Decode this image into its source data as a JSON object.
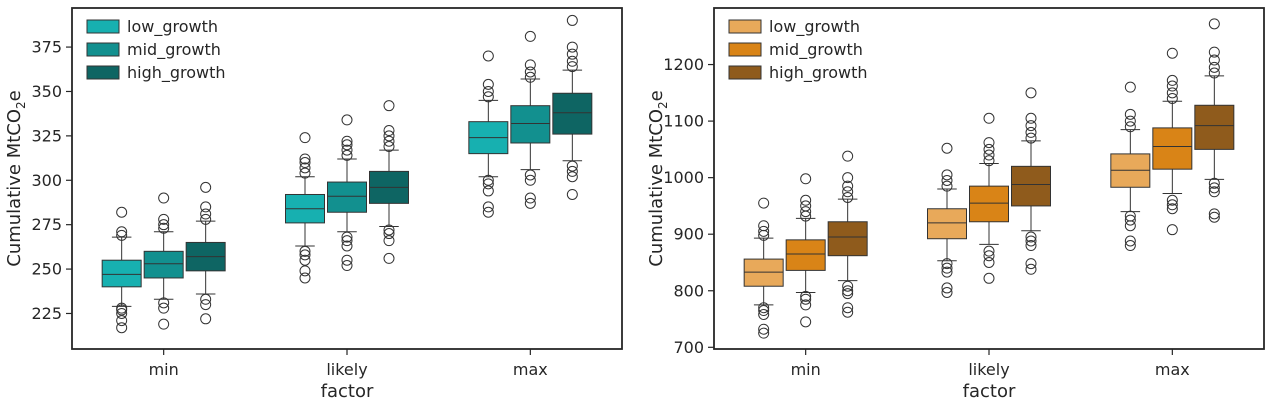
{
  "chart_data": [
    {
      "type": "box",
      "categories": [
        "min",
        "likely",
        "max"
      ],
      "xlabel": "factor",
      "ylabel": "Cumulative MtCO",
      "ylabel_sub": "2",
      "ylabel_tail": "e",
      "ylim": [
        205,
        397
      ],
      "yticks": [
        225,
        250,
        275,
        300,
        325,
        350,
        375
      ],
      "legend": {
        "placement": "top-left",
        "entries": [
          "low_growth",
          "mid_growth",
          "high_growth"
        ]
      },
      "series": [
        {
          "name": "low_growth",
          "color": "#17b0b0",
          "boxes": [
            {
              "median": 247,
              "q1": 240,
              "q3": 255,
              "whisker_low": 229,
              "whisker_high": 268,
              "outliers": [
                217,
                221,
                225,
                227,
                228,
                269,
                271,
                282
              ]
            },
            {
              "median": 284,
              "q1": 276,
              "q3": 292,
              "whisker_low": 263,
              "whisker_high": 302,
              "outliers": [
                245,
                249,
                255,
                258,
                260,
                304,
                307,
                310,
                312,
                324
              ]
            },
            {
              "median": 324,
              "q1": 315,
              "q3": 333,
              "whisker_low": 302,
              "whisker_high": 345,
              "outliers": [
                282,
                285,
                294,
                298,
                300,
                347,
                350,
                354,
                370
              ]
            }
          ]
        },
        {
          "name": "mid_growth",
          "color": "#12908f",
          "boxes": [
            {
              "median": 253,
              "q1": 245,
              "q3": 260,
              "whisker_low": 233,
              "whisker_high": 271,
              "outliers": [
                219,
                228,
                231,
                273,
                275,
                278,
                290
              ]
            },
            {
              "median": 291,
              "q1": 282,
              "q3": 299,
              "whisker_low": 271,
              "whisker_high": 312,
              "outliers": [
                252,
                255,
                263,
                266,
                268,
                314,
                317,
                320,
                322,
                334
              ]
            },
            {
              "median": 332,
              "q1": 321,
              "q3": 342,
              "whisker_low": 306,
              "whisker_high": 357,
              "outliers": [
                287,
                290,
                300,
                303,
                358,
                361,
                365,
                381
              ]
            }
          ]
        },
        {
          "name": "high_growth",
          "color": "#0e6563",
          "boxes": [
            {
              "median": 257,
              "q1": 249,
              "q3": 265,
              "whisker_low": 236,
              "whisker_high": 277,
              "outliers": [
                222,
                230,
                233,
                278,
                281,
                285,
                296
              ]
            },
            {
              "median": 296,
              "q1": 287,
              "q3": 305,
              "whisker_low": 274,
              "whisker_high": 317,
              "outliers": [
                256,
                266,
                270,
                272,
                319,
                322,
                325,
                328,
                342
              ]
            },
            {
              "median": 338,
              "q1": 326,
              "q3": 349,
              "whisker_low": 311,
              "whisker_high": 362,
              "outliers": [
                292,
                302,
                305,
                308,
                364,
                367,
                371,
                375,
                390
              ]
            }
          ]
        }
      ]
    },
    {
      "type": "box",
      "categories": [
        "min",
        "likely",
        "max"
      ],
      "xlabel": "factor",
      "ylabel": "Cumulative MtCO",
      "ylabel_sub": "2",
      "ylabel_tail": "e",
      "ylim": [
        697,
        1300
      ],
      "yticks": [
        700,
        800,
        900,
        1000,
        1100,
        1200
      ],
      "legend": {
        "placement": "top-left",
        "entries": [
          "low_growth",
          "mid_growth",
          "high_growth"
        ]
      },
      "series": [
        {
          "name": "low_growth",
          "color": "#e8a95a",
          "boxes": [
            {
              "median": 833,
              "q1": 808,
              "q3": 856,
              "whisker_low": 775,
              "whisker_high": 893,
              "outliers": [
                725,
                732,
                758,
                765,
                770,
                898,
                905,
                915,
                955
              ]
            },
            {
              "median": 920,
              "q1": 892,
              "q3": 945,
              "whisker_low": 853,
              "whisker_high": 980,
              "outliers": [
                797,
                805,
                833,
                840,
                848,
                985,
                995,
                1005,
                1052
              ]
            },
            {
              "median": 1013,
              "q1": 983,
              "q3": 1042,
              "whisker_low": 940,
              "whisker_high": 1085,
              "outliers": [
                880,
                888,
                915,
                925,
                932,
                1090,
                1100,
                1112,
                1160
              ]
            }
          ]
        },
        {
          "name": "mid_growth",
          "color": "#d98417",
          "boxes": [
            {
              "median": 865,
              "q1": 836,
              "q3": 890,
              "whisker_low": 797,
              "whisker_high": 928,
              "outliers": [
                745,
                775,
                785,
                790,
                932,
                940,
                950,
                960,
                998
              ]
            },
            {
              "median": 955,
              "q1": 922,
              "q3": 985,
              "whisker_low": 882,
              "whisker_high": 1025,
              "outliers": [
                822,
                850,
                862,
                870,
                1030,
                1040,
                1050,
                1062,
                1105
              ]
            },
            {
              "median": 1055,
              "q1": 1015,
              "q3": 1088,
              "whisker_low": 972,
              "whisker_high": 1135,
              "outliers": [
                908,
                945,
                952,
                960,
                1140,
                1150,
                1162,
                1172,
                1220
              ]
            }
          ]
        },
        {
          "name": "high_growth",
          "color": "#8f5b1c",
          "boxes": [
            {
              "median": 895,
              "q1": 862,
              "q3": 922,
              "whisker_low": 818,
              "whisker_high": 962,
              "outliers": [
                762,
                770,
                795,
                800,
                808,
                965,
                975,
                985,
                1000,
                1038
              ]
            },
            {
              "median": 988,
              "q1": 950,
              "q3": 1020,
              "whisker_low": 906,
              "whisker_high": 1065,
              "outliers": [
                838,
                848,
                880,
                888,
                895,
                1070,
                1080,
                1092,
                1105,
                1150
              ]
            },
            {
              "median": 1092,
              "q1": 1050,
              "q3": 1128,
              "whisker_low": 997,
              "whisker_high": 1180,
              "outliers": [
                930,
                936,
                975,
                982,
                990,
                1185,
                1195,
                1208,
                1222,
                1272
              ]
            }
          ]
        }
      ]
    }
  ]
}
